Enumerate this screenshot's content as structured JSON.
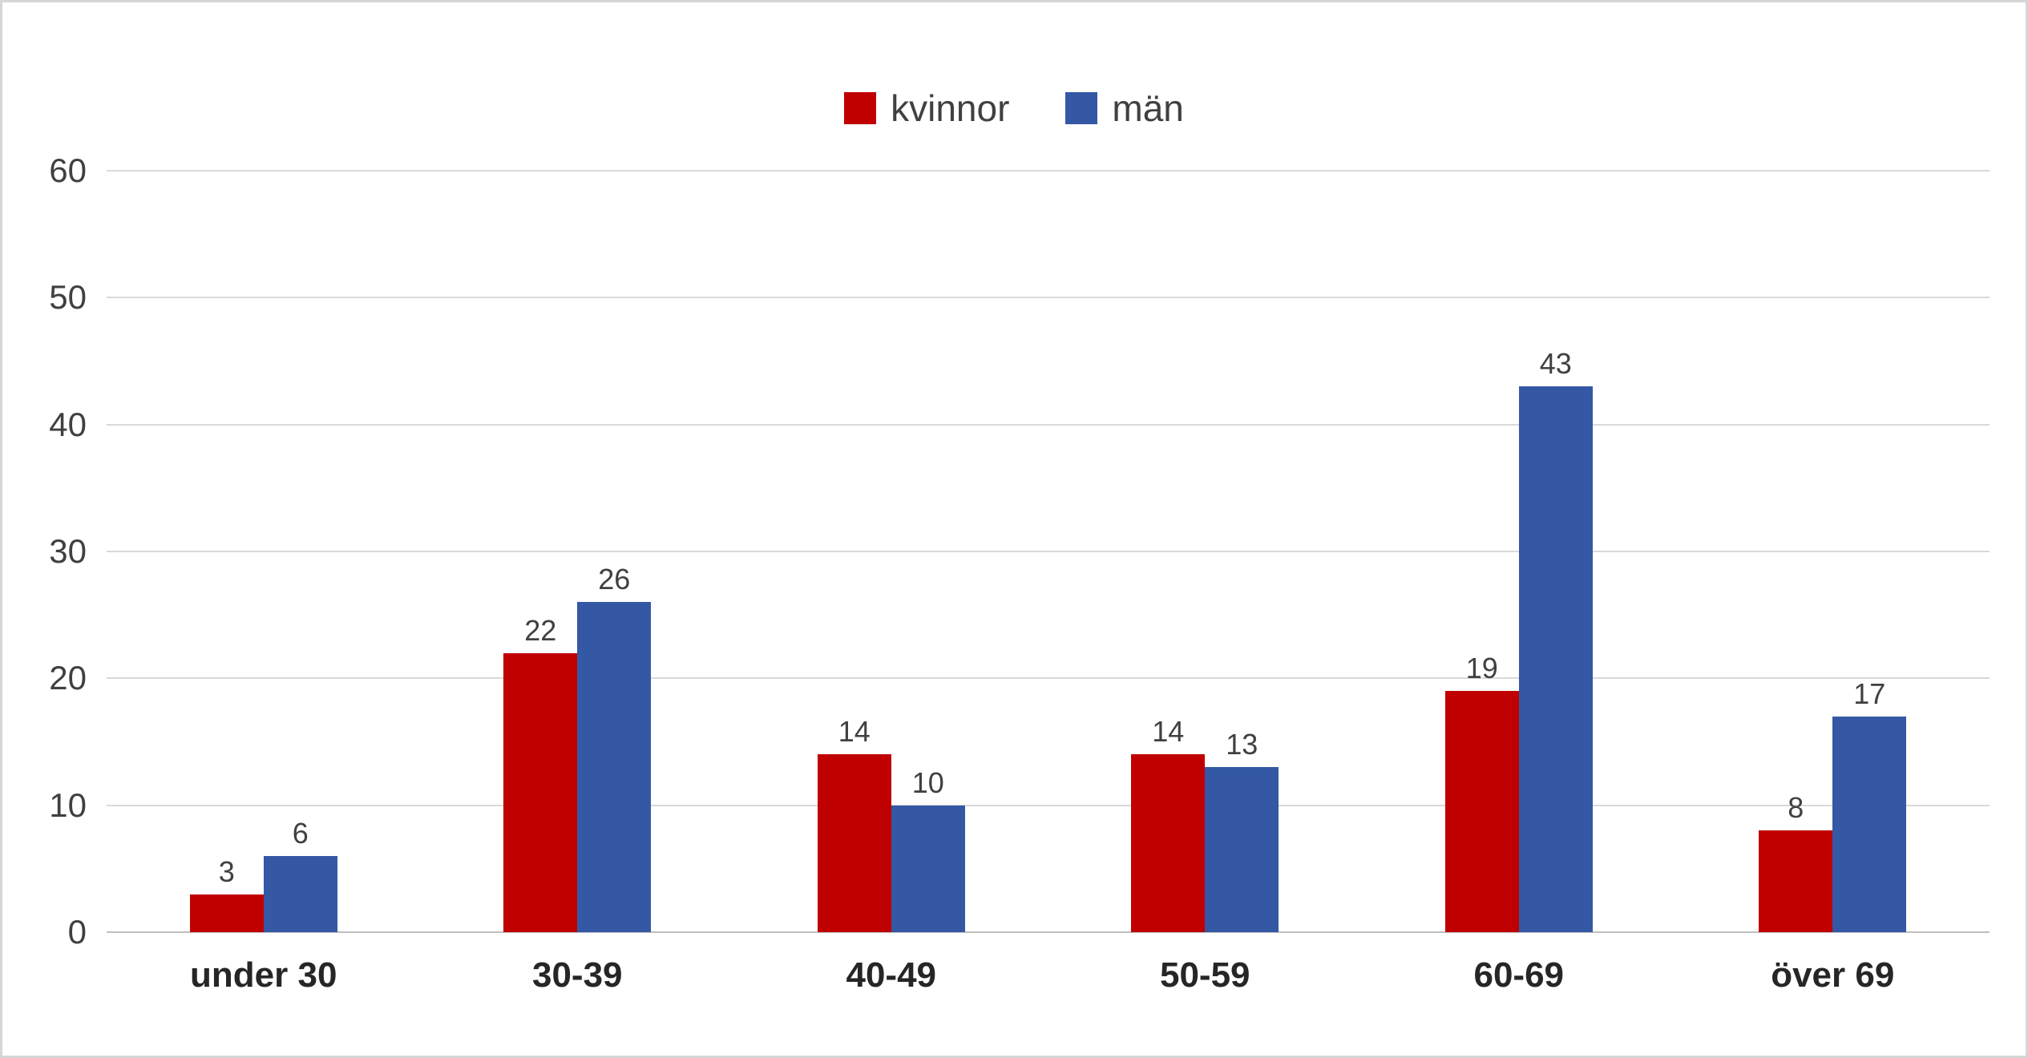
{
  "chart_data": {
    "type": "bar",
    "categories": [
      "under 30",
      "30-39",
      "40-49",
      "50-59",
      "60-69",
      "över 69"
    ],
    "series": [
      {
        "name": "kvinnor",
        "color": "#c00000",
        "values": [
          3,
          22,
          14,
          14,
          19,
          8
        ]
      },
      {
        "name": "män",
        "color": "#3458a4",
        "values": [
          6,
          26,
          10,
          13,
          43,
          17
        ]
      }
    ],
    "title": "",
    "xlabel": "",
    "ylabel": "",
    "ylim": [
      0,
      60
    ],
    "yticks": [
      0,
      10,
      20,
      30,
      40,
      50,
      60
    ],
    "grid": true,
    "data_labels": true,
    "legend": {
      "position": "top-center",
      "entries": [
        "kvinnor",
        "män"
      ]
    },
    "colors": {
      "gridline": "#d9d9d9",
      "axis_line": "#bfbfbf",
      "tick_text": "#404040",
      "category_text": "#262626",
      "value_text": "#404040",
      "background": "#ffffff",
      "border": "#d6d6d6"
    }
  }
}
